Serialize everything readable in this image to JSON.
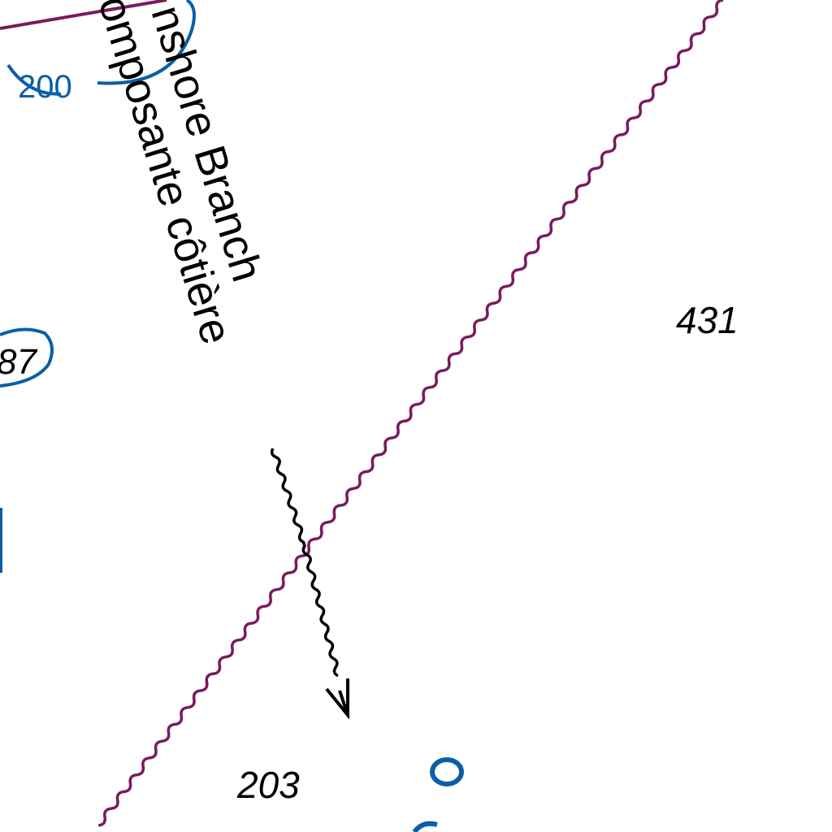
{
  "chart_labels": {
    "current_name_en": "nshore Branch",
    "current_name_fr": "omposante côtière",
    "contour_top": "200",
    "contour_left": "87",
    "sounding_right": "431",
    "sounding_bottom": "203"
  },
  "colors": {
    "boundary": "#7a1a5e",
    "contour": "#0a5fa6",
    "current_arrow": "#000000",
    "background": "#ffffff"
  },
  "icons": [
    "current-arrow-icon"
  ]
}
